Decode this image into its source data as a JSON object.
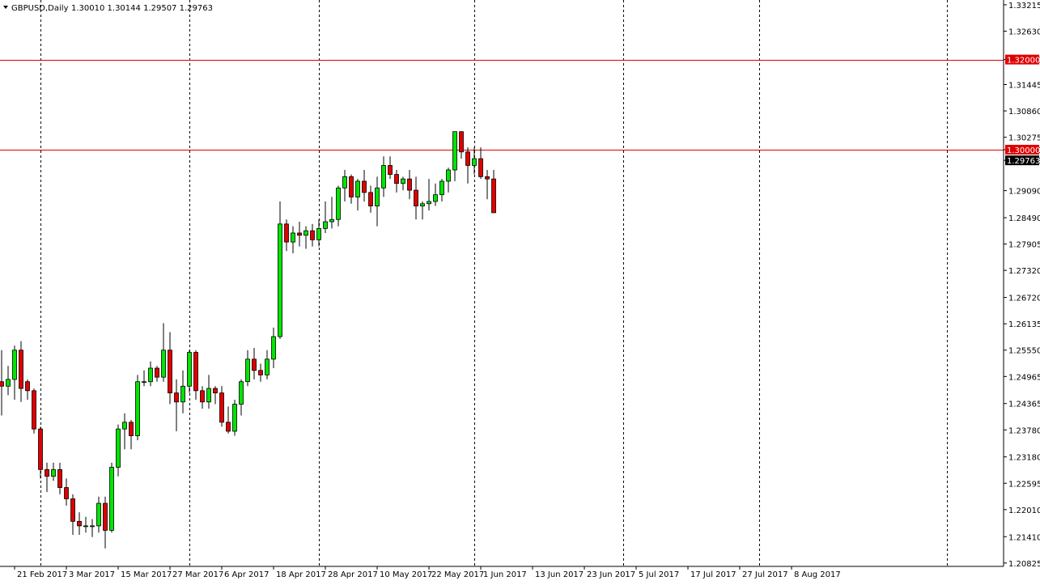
{
  "header": {
    "arrow_icon": "triangle-down-icon",
    "symbol": "GBPUSD,Daily",
    "ohlc": "1.30010 1.30144 1.29507 1.29763"
  },
  "colors": {
    "bull": "#00e600",
    "bear": "#e00000",
    "wick": "#000000",
    "hline": "#e00000",
    "grid": "#000000",
    "label_bg_red": "#e00000",
    "label_bg_black": "#000000",
    "label_text": "#ffffff"
  },
  "chart_data": {
    "type": "candlestick",
    "symbol": "GBPUSD",
    "timeframe": "Daily",
    "ylim": [
      1.2075,
      1.3325
    ],
    "y_ticks": [
      "1.33215",
      "1.32630",
      "1.32000",
      "1.31445",
      "1.30860",
      "1.30275",
      "1.30000",
      "1.29763",
      "1.29090",
      "1.28490",
      "1.27905",
      "1.27320",
      "1.26720",
      "1.26135",
      "1.25550",
      "1.24965",
      "1.24365",
      "1.23780",
      "1.23180",
      "1.22595",
      "1.22010",
      "1.21410",
      "1.20825"
    ],
    "x_labels": [
      {
        "label": "21 Feb 2017",
        "index": 2
      },
      {
        "label": "3 Mar 2017",
        "index": 10
      },
      {
        "label": "15 Mar 2017",
        "index": 18
      },
      {
        "label": "27 Mar 2017",
        "index": 26
      },
      {
        "label": "6 Apr 2017",
        "index": 34
      },
      {
        "label": "18 Apr 2017",
        "index": 42
      },
      {
        "label": "28 Apr 2017",
        "index": 50
      },
      {
        "label": "10 May 2017",
        "index": 58
      },
      {
        "label": "22 May 2017",
        "index": 66
      },
      {
        "label": "1 Jun 2017",
        "index": 74
      },
      {
        "label": "13 Jun 2017",
        "index": 82
      },
      {
        "label": "23 Jun 2017",
        "index": 90
      },
      {
        "label": "5 Jul 2017",
        "index": 98
      },
      {
        "label": "17 Jul 2017",
        "index": 106
      },
      {
        "label": "27 Jul 2017",
        "index": 114
      },
      {
        "label": "8 Aug 2017",
        "index": 122
      }
    ],
    "vgrid_index": [
      6,
      29,
      49,
      73,
      96,
      117,
      146
    ],
    "hlines": [
      {
        "value": 1.32,
        "label": "1.32000"
      },
      {
        "value": 1.3,
        "label": "1.30000"
      }
    ],
    "current_price": {
      "value": 1.29763,
      "label": "1.29763"
    },
    "candles": [
      {
        "o": 1.2485,
        "h": 1.2555,
        "l": 1.241,
        "c": 1.2475
      },
      {
        "o": 1.2475,
        "h": 1.252,
        "l": 1.2455,
        "c": 1.249
      },
      {
        "o": 1.249,
        "h": 1.2565,
        "l": 1.2445,
        "c": 1.2555
      },
      {
        "o": 1.2555,
        "h": 1.2575,
        "l": 1.244,
        "c": 1.247
      },
      {
        "o": 1.2485,
        "h": 1.249,
        "l": 1.2445,
        "c": 1.2465
      },
      {
        "o": 1.2465,
        "h": 1.247,
        "l": 1.237,
        "c": 1.238
      },
      {
        "o": 1.238,
        "h": 1.2385,
        "l": 1.227,
        "c": 1.229
      },
      {
        "o": 1.229,
        "h": 1.2305,
        "l": 1.224,
        "c": 1.2275
      },
      {
        "o": 1.2275,
        "h": 1.2305,
        "l": 1.2265,
        "c": 1.229
      },
      {
        "o": 1.229,
        "h": 1.2305,
        "l": 1.2235,
        "c": 1.225
      },
      {
        "o": 1.225,
        "h": 1.227,
        "l": 1.221,
        "c": 1.2225
      },
      {
        "o": 1.2225,
        "h": 1.2235,
        "l": 1.2145,
        "c": 1.2175
      },
      {
        "o": 1.2175,
        "h": 1.2195,
        "l": 1.2145,
        "c": 1.2165
      },
      {
        "o": 1.2165,
        "h": 1.2185,
        "l": 1.215,
        "c": 1.2165
      },
      {
        "o": 1.2165,
        "h": 1.218,
        "l": 1.214,
        "c": 1.2165
      },
      {
        "o": 1.2165,
        "h": 1.223,
        "l": 1.215,
        "c": 1.2215
      },
      {
        "o": 1.2215,
        "h": 1.223,
        "l": 1.2115,
        "c": 1.2155
      },
      {
        "o": 1.2155,
        "h": 1.2305,
        "l": 1.215,
        "c": 1.2295
      },
      {
        "o": 1.2295,
        "h": 1.239,
        "l": 1.2275,
        "c": 1.238
      },
      {
        "o": 1.238,
        "h": 1.2415,
        "l": 1.2335,
        "c": 1.2395
      },
      {
        "o": 1.2395,
        "h": 1.24,
        "l": 1.2335,
        "c": 1.2365
      },
      {
        "o": 1.2365,
        "h": 1.25,
        "l": 1.2355,
        "c": 1.2485
      },
      {
        "o": 1.2485,
        "h": 1.251,
        "l": 1.2475,
        "c": 1.2485
      },
      {
        "o": 1.2485,
        "h": 1.253,
        "l": 1.2475,
        "c": 1.2515
      },
      {
        "o": 1.2515,
        "h": 1.252,
        "l": 1.2485,
        "c": 1.2495
      },
      {
        "o": 1.2495,
        "h": 1.2615,
        "l": 1.2485,
        "c": 1.2555
      },
      {
        "o": 1.2555,
        "h": 1.2595,
        "l": 1.2435,
        "c": 1.246
      },
      {
        "o": 1.246,
        "h": 1.249,
        "l": 1.2375,
        "c": 1.244
      },
      {
        "o": 1.244,
        "h": 1.251,
        "l": 1.2415,
        "c": 1.2475
      },
      {
        "o": 1.2475,
        "h": 1.2555,
        "l": 1.246,
        "c": 1.255
      },
      {
        "o": 1.255,
        "h": 1.2555,
        "l": 1.2445,
        "c": 1.2465
      },
      {
        "o": 1.2465,
        "h": 1.2475,
        "l": 1.2425,
        "c": 1.244
      },
      {
        "o": 1.244,
        "h": 1.25,
        "l": 1.2425,
        "c": 1.247
      },
      {
        "o": 1.247,
        "h": 1.2475,
        "l": 1.2435,
        "c": 1.246
      },
      {
        "o": 1.246,
        "h": 1.2475,
        "l": 1.2385,
        "c": 1.2395
      },
      {
        "o": 1.2395,
        "h": 1.243,
        "l": 1.237,
        "c": 1.2375
      },
      {
        "o": 1.2375,
        "h": 1.2445,
        "l": 1.2365,
        "c": 1.2435
      },
      {
        "o": 1.2435,
        "h": 1.249,
        "l": 1.241,
        "c": 1.2485
      },
      {
        "o": 1.2485,
        "h": 1.2555,
        "l": 1.2475,
        "c": 1.2535
      },
      {
        "o": 1.2535,
        "h": 1.256,
        "l": 1.249,
        "c": 1.251
      },
      {
        "o": 1.251,
        "h": 1.2525,
        "l": 1.2485,
        "c": 1.25
      },
      {
        "o": 1.25,
        "h": 1.2555,
        "l": 1.249,
        "c": 1.2535
      },
      {
        "o": 1.2535,
        "h": 1.2605,
        "l": 1.2515,
        "c": 1.2585
      },
      {
        "o": 1.2585,
        "h": 1.2885,
        "l": 1.258,
        "c": 1.2835
      },
      {
        "o": 1.2835,
        "h": 1.2845,
        "l": 1.2775,
        "c": 1.2795
      },
      {
        "o": 1.2795,
        "h": 1.283,
        "l": 1.277,
        "c": 1.2815
      },
      {
        "o": 1.2815,
        "h": 1.284,
        "l": 1.2785,
        "c": 1.281
      },
      {
        "o": 1.281,
        "h": 1.283,
        "l": 1.278,
        "c": 1.282
      },
      {
        "o": 1.282,
        "h": 1.2835,
        "l": 1.2785,
        "c": 1.28
      },
      {
        "o": 1.28,
        "h": 1.2845,
        "l": 1.2785,
        "c": 1.2825
      },
      {
        "o": 1.2825,
        "h": 1.2885,
        "l": 1.2815,
        "c": 1.284
      },
      {
        "o": 1.284,
        "h": 1.2895,
        "l": 1.2825,
        "c": 1.2845
      },
      {
        "o": 1.2845,
        "h": 1.292,
        "l": 1.283,
        "c": 1.2915
      },
      {
        "o": 1.2915,
        "h": 1.2955,
        "l": 1.2885,
        "c": 1.294
      },
      {
        "o": 1.294,
        "h": 1.2945,
        "l": 1.288,
        "c": 1.2895
      },
      {
        "o": 1.2895,
        "h": 1.2935,
        "l": 1.2865,
        "c": 1.293
      },
      {
        "o": 1.293,
        "h": 1.2955,
        "l": 1.2885,
        "c": 1.2905
      },
      {
        "o": 1.2905,
        "h": 1.292,
        "l": 1.286,
        "c": 1.2875
      },
      {
        "o": 1.2875,
        "h": 1.294,
        "l": 1.283,
        "c": 1.2915
      },
      {
        "o": 1.2915,
        "h": 1.2985,
        "l": 1.2895,
        "c": 1.2965
      },
      {
        "o": 1.2965,
        "h": 1.2985,
        "l": 1.2935,
        "c": 1.2945
      },
      {
        "o": 1.2945,
        "h": 1.2955,
        "l": 1.2905,
        "c": 1.2925
      },
      {
        "o": 1.2925,
        "h": 1.294,
        "l": 1.291,
        "c": 1.2935
      },
      {
        "o": 1.2935,
        "h": 1.2955,
        "l": 1.289,
        "c": 1.291
      },
      {
        "o": 1.291,
        "h": 1.294,
        "l": 1.2845,
        "c": 1.2875
      },
      {
        "o": 1.2875,
        "h": 1.2885,
        "l": 1.2845,
        "c": 1.288
      },
      {
        "o": 1.288,
        "h": 1.2935,
        "l": 1.2865,
        "c": 1.2885
      },
      {
        "o": 1.2885,
        "h": 1.2925,
        "l": 1.2875,
        "c": 1.29
      },
      {
        "o": 1.29,
        "h": 1.2935,
        "l": 1.2885,
        "c": 1.293
      },
      {
        "o": 1.293,
        "h": 1.296,
        "l": 1.2905,
        "c": 1.2955
      },
      {
        "o": 1.2955,
        "h": 1.304,
        "l": 1.293,
        "c": 1.304
      },
      {
        "o": 1.304,
        "h": 1.3035,
        "l": 1.298,
        "c": 1.2995
      },
      {
        "o": 1.2995,
        "h": 1.3005,
        "l": 1.2925,
        "c": 1.2965
      },
      {
        "o": 1.2965,
        "h": 1.3005,
        "l": 1.2945,
        "c": 1.298
      },
      {
        "o": 1.298,
        "h": 1.3005,
        "l": 1.2935,
        "c": 1.294
      },
      {
        "o": 1.294,
        "h": 1.2955,
        "l": 1.289,
        "c": 1.2935
      },
      {
        "o": 1.2935,
        "h": 1.2955,
        "l": 1.286,
        "c": 1.286
      }
    ]
  }
}
